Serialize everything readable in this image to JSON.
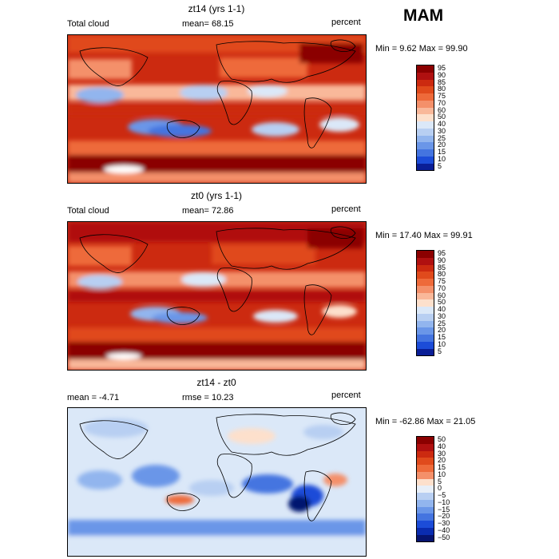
{
  "season": "MAM",
  "panels": [
    {
      "title": "zt14 (yrs 1-1)",
      "left_label": "Total cloud",
      "mid_label": "mean=  68.15",
      "units": "percent",
      "minmax": "Min =   9.62 Max =  99.90",
      "colorbar": {
        "labels": [
          "95",
          "90",
          "85",
          "80",
          "75",
          "70",
          "60",
          "50",
          "40",
          "30",
          "25",
          "20",
          "15",
          "10",
          "5"
        ],
        "colors": [
          "#8b0000",
          "#b01010",
          "#cc2a10",
          "#e04a1c",
          "#ee6a3a",
          "#f4906a",
          "#f9b89a",
          "#fde0cc",
          "#dbe8f8",
          "#b8cff2",
          "#92b5ee",
          "#6a96e8",
          "#4474e0",
          "#1c4cd8",
          "#0a1e96"
        ]
      }
    },
    {
      "title": "zt0 (yrs 1-1)",
      "left_label": "Total cloud",
      "mid_label": "mean=  72.86",
      "units": "percent",
      "minmax": "Min =  17.40 Max =  99.91",
      "colorbar": {
        "labels": [
          "95",
          "90",
          "85",
          "80",
          "75",
          "70",
          "60",
          "50",
          "40",
          "30",
          "25",
          "20",
          "15",
          "10",
          "5"
        ],
        "colors": [
          "#8b0000",
          "#b01010",
          "#cc2a10",
          "#e04a1c",
          "#ee6a3a",
          "#f4906a",
          "#f9b89a",
          "#fde0cc",
          "#dbe8f8",
          "#b8cff2",
          "#92b5ee",
          "#6a96e8",
          "#4474e0",
          "#1c4cd8",
          "#0a1e96"
        ]
      }
    },
    {
      "title": "zt14 - zt0",
      "left_label": "mean =  -4.71",
      "mid_label": "rmse =  10.23",
      "units": "percent",
      "minmax": "Min = -62.86 Max =  21.05",
      "colorbar": {
        "labels": [
          "50",
          "40",
          "30",
          "20",
          "15",
          "10",
          "5",
          "0",
          "−5",
          "−10",
          "−15",
          "−20",
          "−30",
          "−40",
          "−50"
        ],
        "colors": [
          "#8b0000",
          "#b01010",
          "#cc2a10",
          "#e04a1c",
          "#ee6a3a",
          "#f4906a",
          "#fde0cc",
          "#e8eff8",
          "#b8cff2",
          "#92b5ee",
          "#6a96e8",
          "#4474e0",
          "#1c4cd8",
          "#0a2cb0",
          "#061470"
        ]
      }
    }
  ],
  "chart_data": [
    {
      "type": "heatmap",
      "title": "zt14 (yrs 1-1)",
      "variable": "Total cloud",
      "units": "percent",
      "mean": 68.15,
      "min": 9.62,
      "max": 99.9,
      "season": "MAM",
      "colorbar_levels": [
        5,
        10,
        15,
        20,
        25,
        30,
        40,
        50,
        60,
        70,
        75,
        80,
        85,
        90,
        95
      ]
    },
    {
      "type": "heatmap",
      "title": "zt0 (yrs 1-1)",
      "variable": "Total cloud",
      "units": "percent",
      "mean": 72.86,
      "min": 17.4,
      "max": 99.91,
      "season": "MAM",
      "colorbar_levels": [
        5,
        10,
        15,
        20,
        25,
        30,
        40,
        50,
        60,
        70,
        75,
        80,
        85,
        90,
        95
      ]
    },
    {
      "type": "heatmap",
      "title": "zt14 - zt0",
      "units": "percent",
      "mean": -4.71,
      "rmse": 10.23,
      "min": -62.86,
      "max": 21.05,
      "season": "MAM",
      "colorbar_levels": [
        -50,
        -40,
        -30,
        -20,
        -15,
        -10,
        -5,
        0,
        5,
        10,
        15,
        20,
        30,
        40,
        50
      ]
    }
  ]
}
